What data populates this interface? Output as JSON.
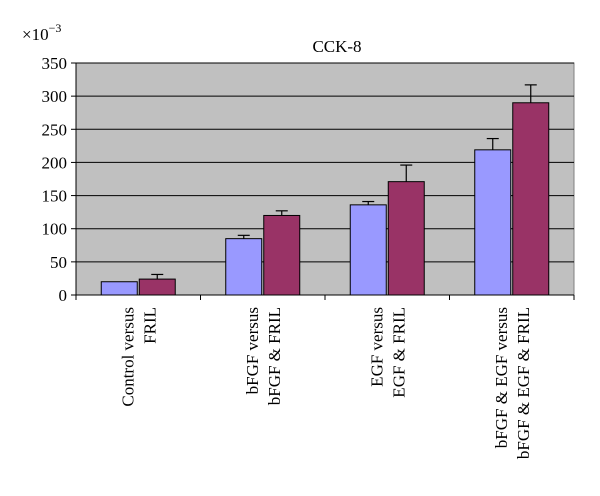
{
  "chart_data": {
    "type": "bar",
    "title": "CCK-8",
    "scale_label": "×10",
    "scale_exponent": "−3",
    "xlabel": "",
    "ylabel": "",
    "ylim": [
      0,
      350
    ],
    "yticks": [
      0,
      50,
      100,
      150,
      200,
      250,
      300,
      350
    ],
    "grid": true,
    "legend": "none",
    "categories": [
      [
        "Control versus",
        "FRIL"
      ],
      [
        "bFGF versus",
        "bFGF & FRIL"
      ],
      [
        "EGF versus",
        "EGF & FRIL"
      ],
      [
        "bFGF & EGF versus",
        "bFGF & EGF & FRIL"
      ]
    ],
    "series": [
      {
        "values": [
          20,
          85,
          136,
          219
        ],
        "errors": [
          0,
          5,
          5,
          17
        ],
        "color": "#9999ff"
      },
      {
        "values": [
          24,
          120,
          171,
          290
        ],
        "errors": [
          7,
          7,
          25,
          27
        ],
        "color": "#993366"
      }
    ],
    "plot_background": "#c0c0c0"
  }
}
